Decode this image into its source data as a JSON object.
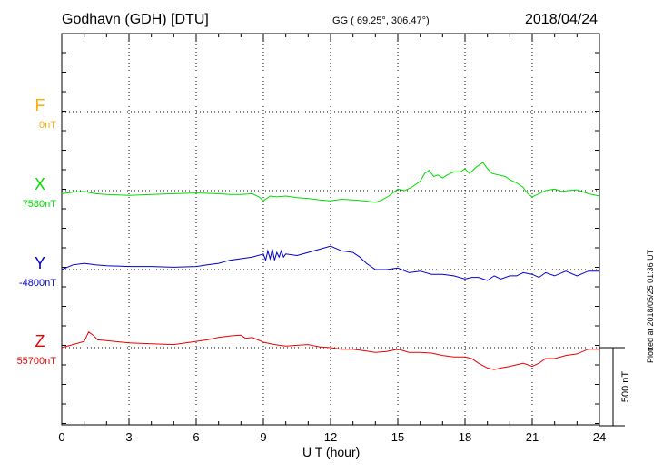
{
  "header": {
    "station": "Godhavn (GDH)  [DTU]",
    "coords": "GG ( 69.25°, 306.47°)",
    "date": "2018/04/24",
    "plotted": "Plotted at 2018/05/25 01:36 UT"
  },
  "colors": {
    "F": "#ffaa00",
    "X": "#00dd00",
    "Y": "#0000cc",
    "Z": "#ee0000",
    "grid": "#000000"
  },
  "chart_data": {
    "type": "line",
    "title": "Godhavn (GDH)  [DTU]",
    "xlabel": "U T (hour)",
    "ylabel": "",
    "xlim": [
      0,
      24
    ],
    "x_ticks": [
      0,
      3,
      6,
      9,
      12,
      15,
      18,
      21,
      24
    ],
    "x_tick_labels": [
      "0",
      "3",
      "6",
      "9",
      "12",
      "15",
      "18",
      "21",
      "24"
    ],
    "grid": true,
    "scale_bar": {
      "value": 500,
      "label": "500 nT"
    },
    "series": [
      {
        "name": "F",
        "baseline_label": "0nT",
        "baseline_nT": 0,
        "x": [],
        "y": []
      },
      {
        "name": "X",
        "baseline_label": "7580nT",
        "baseline_nT": 7580,
        "x": [
          0,
          0.5,
          1,
          1.5,
          2,
          3,
          4,
          5,
          6,
          7,
          7.5,
          8,
          8.5,
          8.8,
          9,
          9.3,
          9.6,
          10,
          10.5,
          11,
          11.5,
          12,
          12.5,
          13,
          13.5,
          14,
          14.3,
          14.6,
          15,
          15.3,
          15.6,
          16,
          16.2,
          16.4,
          16.6,
          16.8,
          17,
          17.2,
          17.5,
          17.8,
          18,
          18.2,
          18.5,
          18.8,
          19,
          19.2,
          19.5,
          19.8,
          20,
          20.3,
          20.6,
          20.8,
          21,
          21.3,
          21.6,
          22,
          22.3,
          22.6,
          23,
          23.5,
          24
        ],
        "y": [
          7560,
          7570,
          7575,
          7560,
          7555,
          7550,
          7555,
          7560,
          7565,
          7560,
          7555,
          7555,
          7560,
          7540,
          7515,
          7545,
          7540,
          7545,
          7535,
          7530,
          7520,
          7515,
          7525,
          7520,
          7515,
          7505,
          7520,
          7545,
          7590,
          7580,
          7600,
          7640,
          7690,
          7710,
          7670,
          7680,
          7660,
          7680,
          7700,
          7700,
          7720,
          7690,
          7730,
          7760,
          7720,
          7690,
          7680,
          7670,
          7650,
          7630,
          7600,
          7560,
          7540,
          7560,
          7580,
          7590,
          7575,
          7580,
          7585,
          7560,
          7545
        ]
      },
      {
        "name": "Y",
        "baseline_label": "-4800nT",
        "baseline_nT": -4800,
        "x": [
          0,
          0.5,
          1,
          1.5,
          2,
          3,
          4,
          5,
          6,
          6.5,
          7,
          7.5,
          8,
          8.5,
          9,
          9.1,
          9.2,
          9.3,
          9.4,
          9.5,
          9.6,
          9.7,
          9.8,
          9.9,
          10,
          10.5,
          11,
          11.5,
          12,
          12.5,
          13,
          13.3,
          13.6,
          14,
          14.5,
          15,
          15.5,
          16,
          16.5,
          17,
          17.5,
          18,
          18.3,
          18.6,
          19,
          19.3,
          19.6,
          20,
          20.3,
          20.6,
          21,
          21.3,
          21.6,
          22,
          22.5,
          23,
          23.5,
          24
        ],
        "y": [
          -4800,
          -4770,
          -4760,
          -4770,
          -4775,
          -4780,
          -4780,
          -4785,
          -4780,
          -4770,
          -4760,
          -4740,
          -4730,
          -4720,
          -4700,
          -4740,
          -4680,
          -4730,
          -4670,
          -4740,
          -4690,
          -4720,
          -4680,
          -4720,
          -4700,
          -4710,
          -4690,
          -4670,
          -4650,
          -4680,
          -4690,
          -4720,
          -4760,
          -4800,
          -4800,
          -4790,
          -4820,
          -4810,
          -4830,
          -4830,
          -4840,
          -4860,
          -4850,
          -4850,
          -4870,
          -4840,
          -4860,
          -4840,
          -4840,
          -4820,
          -4830,
          -4850,
          -4820,
          -4840,
          -4810,
          -4840,
          -4810,
          -4810
        ]
      },
      {
        "name": "Z",
        "baseline_label": "55700nT",
        "baseline_nT": 55700,
        "x": [
          0,
          0.5,
          1,
          1.2,
          1.4,
          1.6,
          2,
          3,
          4,
          5,
          6,
          6.5,
          7,
          7.5,
          8,
          8.2,
          8.5,
          9,
          9.5,
          10,
          10.5,
          11,
          11.5,
          12,
          12.5,
          13,
          13.5,
          14,
          14.5,
          15,
          15.5,
          16,
          16.5,
          17,
          17.5,
          18,
          18.3,
          18.6,
          19,
          19.3,
          19.6,
          20,
          20.3,
          20.6,
          21,
          21.3,
          21.6,
          22,
          22.5,
          23,
          23.5,
          24
        ],
        "y": [
          55700,
          55720,
          55740,
          55800,
          55780,
          55750,
          55745,
          55730,
          55725,
          55720,
          55740,
          55750,
          55765,
          55775,
          55780,
          55760,
          55765,
          55735,
          55720,
          55710,
          55715,
          55720,
          55705,
          55700,
          55690,
          55690,
          55680,
          55670,
          55675,
          55690,
          55670,
          55670,
          55665,
          55650,
          55640,
          55640,
          55630,
          55600,
          55570,
          55560,
          55570,
          55580,
          55590,
          55600,
          55580,
          55600,
          55630,
          55630,
          55650,
          55660,
          55690,
          55690
        ]
      }
    ]
  }
}
